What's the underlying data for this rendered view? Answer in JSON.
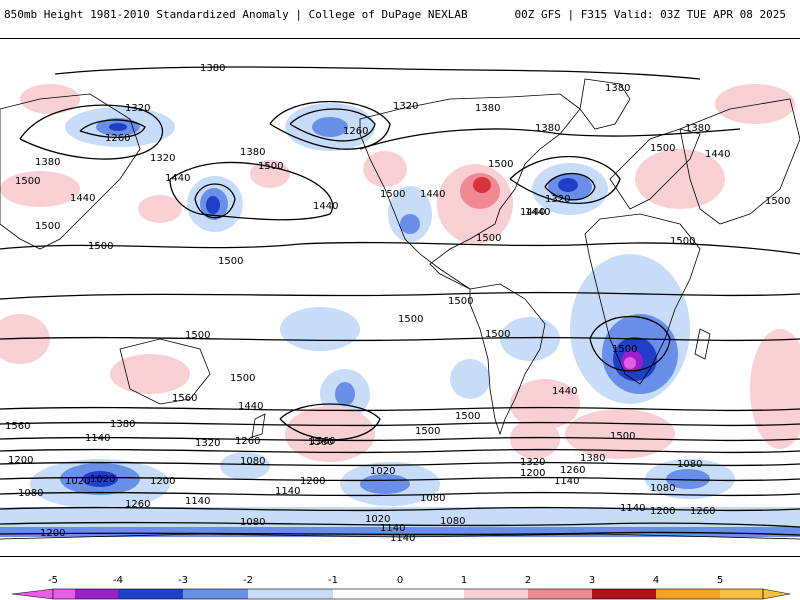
{
  "header": {
    "left_title": "850mb Height 1981-2010 Standardized Anomaly | College of DuPage NEXLAB",
    "right_title": "00Z GFS | F315 Valid: 03Z TUE APR 08 2025"
  },
  "colors": {
    "neg5": "#e85ce8",
    "neg4": "#9a1fc8",
    "neg3": "#1f3fc8",
    "neg2": "#6a8fe8",
    "neg1": "#c6dcf8",
    "pos1": "#f8cfd2",
    "pos2": "#f08a92",
    "pos3": "#d8323c",
    "pos4": "#b0101a",
    "pos5": "#f8a020",
    "contour": "#000000",
    "coast": "#000000"
  },
  "contour_labels": [
    "1380",
    "1380",
    "1320",
    "1260",
    "1260",
    "1320",
    "1380",
    "1320",
    "1380",
    "1380",
    "1500",
    "1440",
    "1440",
    "1500",
    "1500",
    "1440",
    "1500",
    "1500",
    "1440",
    "1380",
    "1500",
    "1500",
    "1500",
    "1380",
    "1440",
    "1500",
    "1440",
    "1500",
    "1500",
    "1440",
    "1320",
    "1500",
    "1440",
    "1560",
    "1500",
    "1500",
    "1500",
    "1500",
    "1500",
    "1500",
    "1500",
    "1500",
    "1500",
    "1500",
    "1500",
    "1500",
    "1560",
    "1440",
    "1500",
    "1440",
    "1500",
    "1560",
    "1380",
    "1320",
    "1260",
    "1140",
    "1200",
    "1080",
    "1020",
    "1200",
    "1260",
    "1140",
    "1080",
    "1200",
    "1140",
    "1080",
    "1020",
    "1080",
    "1140",
    "1260",
    "1200",
    "1320",
    "1380",
    "1500",
    "1560",
    "1020",
    "1080",
    "1140",
    "1200",
    "1140",
    "1080",
    "1200",
    "1260",
    "1080",
    "1140",
    "1200",
    "1080",
    "1020",
    "1380",
    "1320",
    "1260",
    "1200",
    "1140",
    "1200"
  ],
  "colorbar": {
    "ticks": [
      "-5",
      "-4",
      "-3",
      "-2",
      "-1",
      "0",
      "1",
      "2",
      "3",
      "4",
      "5"
    ]
  }
}
